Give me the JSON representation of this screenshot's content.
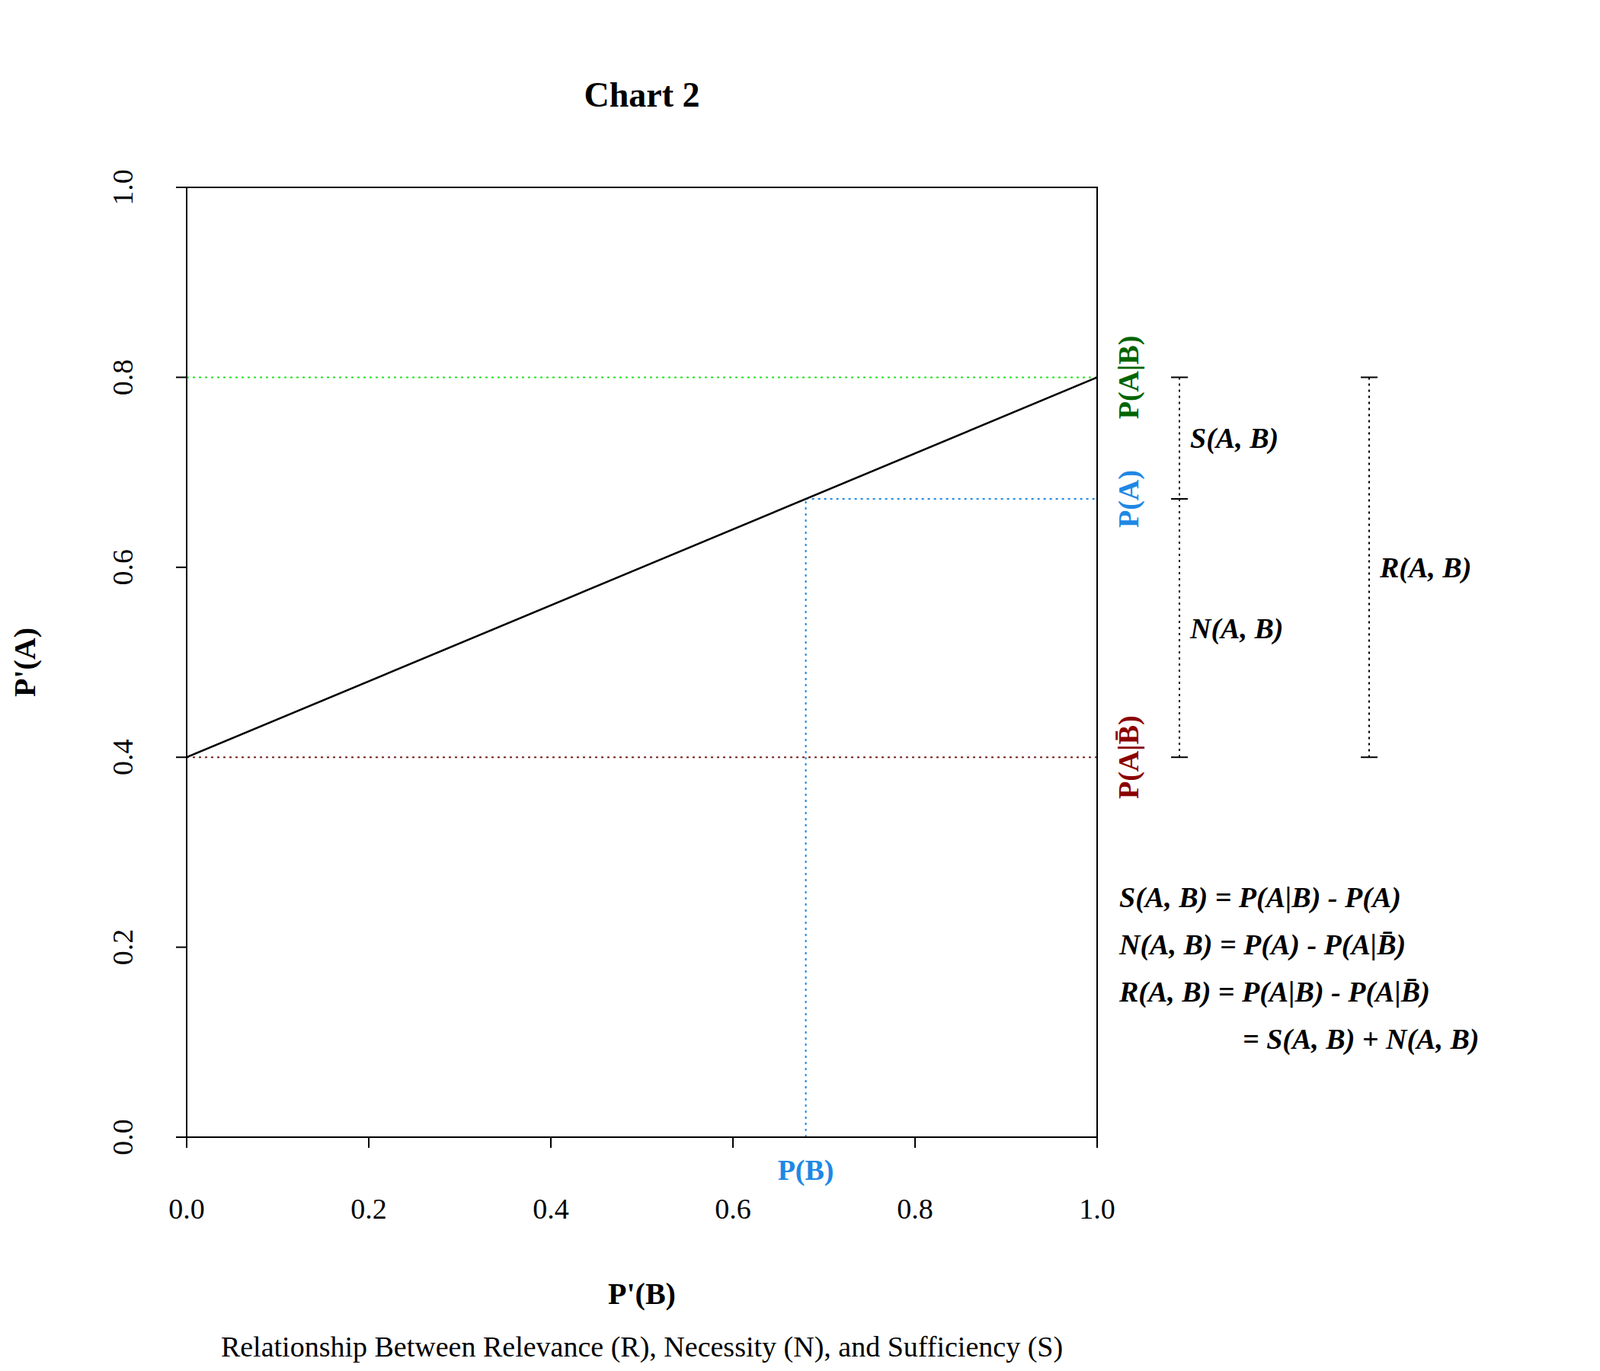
{
  "chart_data": {
    "type": "line",
    "title": "Chart 2",
    "x_label": "P'(B)",
    "y_label": "P'(A)",
    "caption": "Relationship Between Relevance (R), Necessity (N), and Sufficiency (S)",
    "x": [
      0,
      1
    ],
    "values": [
      0.4,
      0.8
    ],
    "color": "#000000",
    "xlim": [
      0,
      1
    ],
    "ylim": [
      0,
      1
    ],
    "xticks": [
      {
        "value": 0,
        "label": "0.0"
      },
      {
        "value": 0.2,
        "label": "0.2"
      },
      {
        "value": 0.4,
        "label": "0.4"
      },
      {
        "value": 0.6,
        "label": "0.6"
      },
      {
        "value": 0.8,
        "label": "0.8"
      },
      {
        "value": 1,
        "label": "1.0"
      }
    ],
    "yticks": [
      {
        "value": 0,
        "label": "0.0"
      },
      {
        "value": 0.2,
        "label": "0.2"
      },
      {
        "value": 0.4,
        "label": "0.4"
      },
      {
        "value": 0.6,
        "label": "0.6"
      },
      {
        "value": 0.8,
        "label": "0.8"
      },
      {
        "value": 1,
        "label": "1.0"
      }
    ],
    "reference_lines": [
      {
        "label": "P(A|B)",
        "value": 0.8,
        "color": "#22e022",
        "line_style": "dotted"
      },
      {
        "label": "P(A|B̄)",
        "value": 0.4,
        "color": "#7a1f1f",
        "line_style": "dotted"
      }
    ],
    "point": {
      "x": 0.68,
      "y": 0.672,
      "x_label": "P(B)",
      "y_label": "P(A)",
      "color": "#1e88e5",
      "line_style": "dotted"
    },
    "brackets": [
      [
        {
          "label": "S(A, B)",
          "from": 0.672,
          "to": 0.8
        },
        {
          "label": "N(A, B)",
          "from": 0.4,
          "to": 0.672
        }
      ],
      [
        {
          "label": "R(A, B)",
          "from": 0.4,
          "to": 0.8
        }
      ]
    ],
    "formulas": [
      "S(A, B) = P(A|B) - P(A)",
      "N(A, B) = P(A) - P(A|B̄)",
      "R(A, B) = P(A|B) - P(A|B̄)",
      "= S(A, B) + N(A, B)"
    ]
  }
}
